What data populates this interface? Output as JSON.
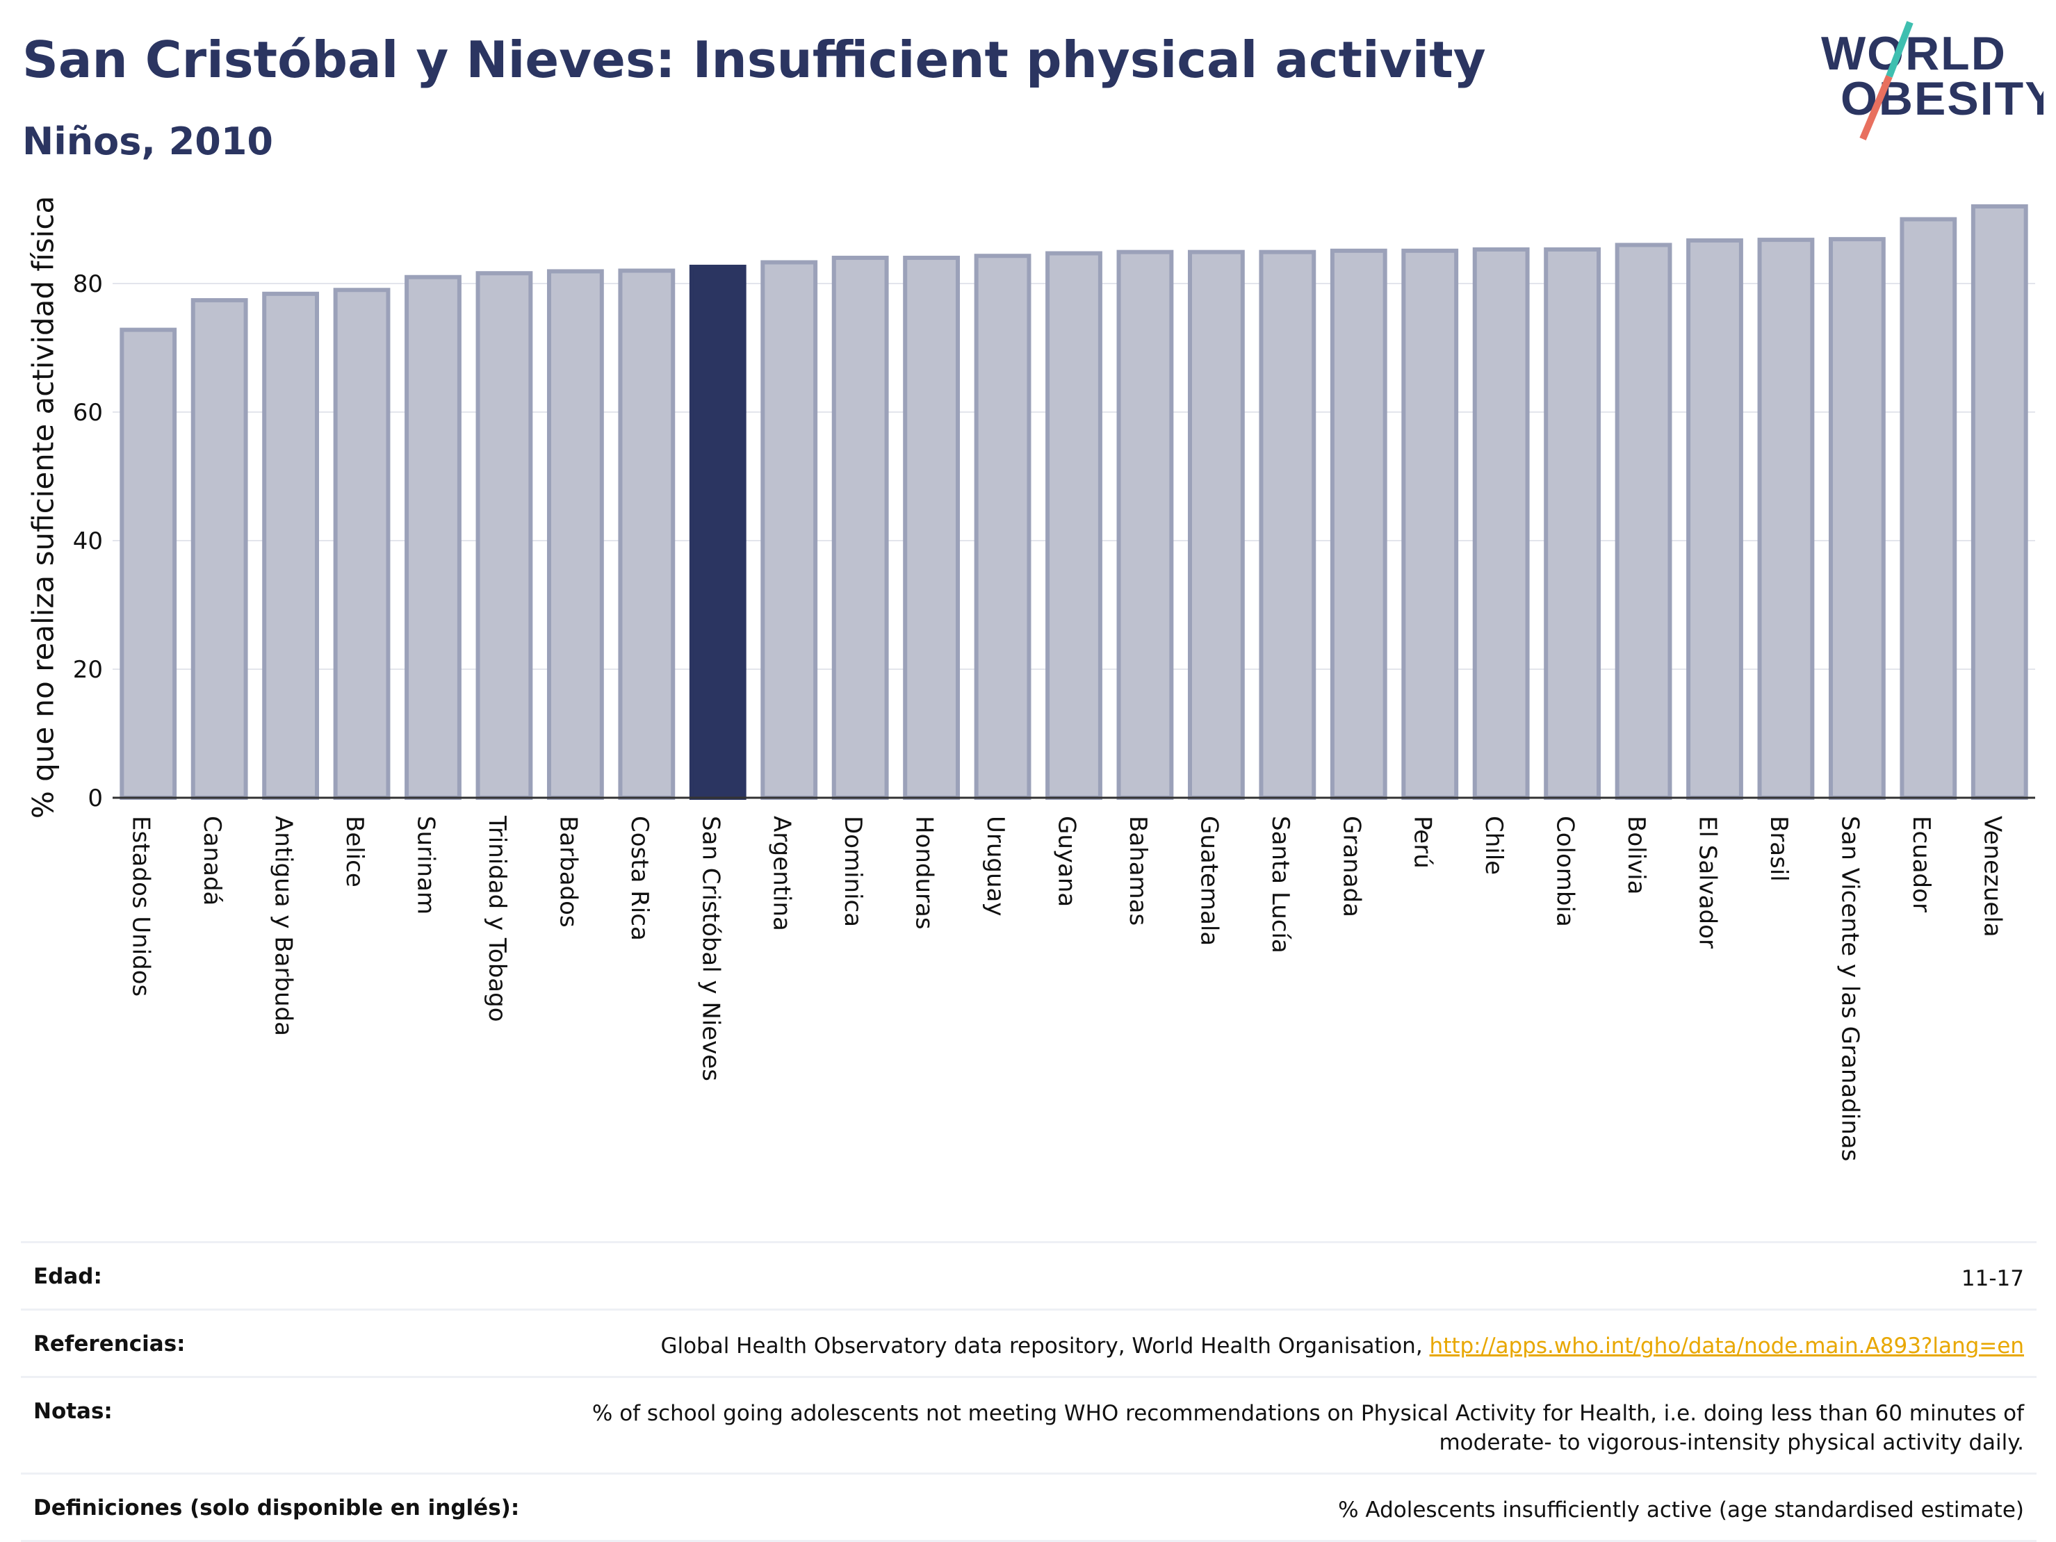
{
  "header": {
    "title": "San Cristóbal y Nieves: Insufficient physical activity",
    "subtitle": "Niños, 2010"
  },
  "logo": {
    "line1": "WORLD",
    "line2": "OBESITY",
    "colors": {
      "text": "#2b3561",
      "slash_top": "#3fbfb0",
      "slash_bottom": "#e8705f"
    }
  },
  "chart_data": {
    "type": "bar",
    "ylabel": "% que no realiza suficiente actividad física",
    "xlabel": "",
    "ylim": [
      0,
      96
    ],
    "yticks": [
      0,
      20,
      40,
      60,
      80
    ],
    "grid": true,
    "highlight": "San Cristóbal y Nieves",
    "colors": {
      "bar": "#bec1cf",
      "bar_edge": "#9ba1b9",
      "highlight": "#2b3561"
    },
    "categories": [
      "Estados Unidos",
      "Canadá",
      "Antigua y Barbuda",
      "Belice",
      "Surinam",
      "Trinidad y Tobago",
      "Barbados",
      "Costa Rica",
      "San Cristóbal y Nieves",
      "Argentina",
      "Dominica",
      "Honduras",
      "Uruguay",
      "Guyana",
      "Bahamas",
      "Guatemala",
      "Santa Lucía",
      "Granada",
      "Perú",
      "Chile",
      "Colombia",
      "Bolivia",
      "El Salvador",
      "Brasil",
      "San Vicente y las Granadinas",
      "Ecuador",
      "Venezuela"
    ],
    "values": [
      72.8,
      77.4,
      78.4,
      79.0,
      81.0,
      81.6,
      81.9,
      82.0,
      82.6,
      83.3,
      84.0,
      84.0,
      84.3,
      84.7,
      84.9,
      84.9,
      84.9,
      85.1,
      85.1,
      85.3,
      85.3,
      86.0,
      86.7,
      86.8,
      86.9,
      90.0,
      92.0
    ]
  },
  "info": {
    "age_label": "Edad:",
    "age_value": "11-17",
    "refs_label": "Referencias:",
    "refs_text": "Global Health Observatory data repository, World Health Organisation, ",
    "refs_link": "http://apps.who.int/gho/data/node.main.A893?lang=en",
    "notes_label": "Notas:",
    "notes_value": "% of school going adolescents not meeting WHO recommendations on Physical Activity for Health, i.e. doing less than 60 minutes of moderate- to vigorous-intensity physical activity daily.",
    "defs_label": "Definiciones (solo disponible en inglés):",
    "defs_value": "% Adolescents insufficiently active (age standardised estimate)"
  }
}
